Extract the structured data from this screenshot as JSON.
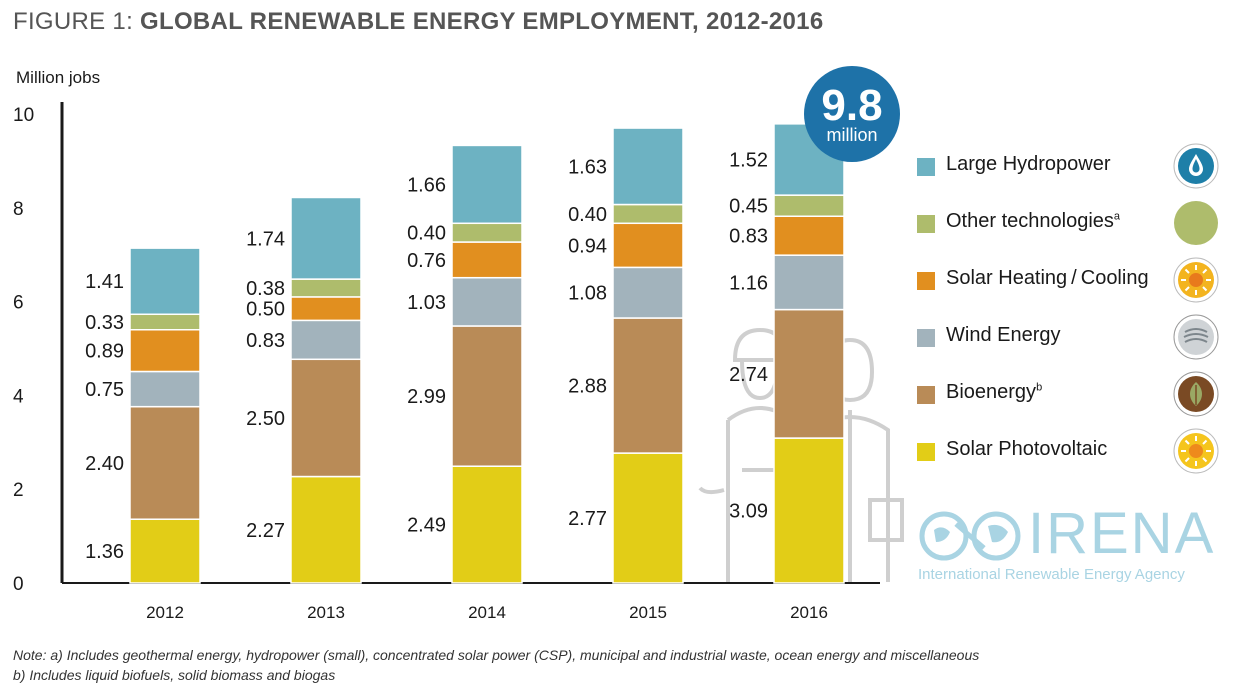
{
  "figure": {
    "prefix": "FIGURE 1: ",
    "title": "GLOBAL RENEWABLE ENERGY EMPLOYMENT, 2012-2016"
  },
  "chart_data": {
    "type": "bar",
    "stacked": true,
    "title": "GLOBAL RENEWABLE ENERGY EMPLOYMENT, 2012-2016",
    "ylabel": "Million jobs",
    "xlabel": "",
    "ylim": [
      0,
      10
    ],
    "yticks": [
      0,
      2,
      4,
      6,
      8,
      10
    ],
    "categories": [
      "2012",
      "2013",
      "2014",
      "2015",
      "2016"
    ],
    "series": [
      {
        "name": "Solar Photovoltaic",
        "color": "#e2cd17",
        "values": [
          1.36,
          2.27,
          2.49,
          2.77,
          3.09
        ],
        "labels": [
          "1.36",
          "2.27",
          "2.49",
          "2.77",
          "3.09"
        ]
      },
      {
        "name": "Bioenergy",
        "color": "#b98b57",
        "values": [
          2.4,
          2.5,
          2.99,
          2.88,
          2.74
        ],
        "labels": [
          "2.40",
          "2.50",
          "2.99",
          "2.88",
          "2.74"
        ]
      },
      {
        "name": "Wind Energy",
        "color": "#a2b3bc",
        "values": [
          0.75,
          0.83,
          1.03,
          1.08,
          1.16
        ],
        "labels": [
          "0.75",
          "0.83",
          "1.03",
          "1.08",
          "1.16"
        ]
      },
      {
        "name": "Solar Heating / Cooling",
        "color": "#e18f1f",
        "values": [
          0.89,
          0.5,
          0.76,
          0.94,
          0.83
        ],
        "labels": [
          "0.89",
          "0.50",
          "0.76",
          "0.94",
          "0.83"
        ]
      },
      {
        "name": "Other technologies",
        "color": "#aebc6c",
        "values": [
          0.33,
          0.38,
          0.4,
          0.4,
          0.45
        ],
        "labels": [
          "0.33",
          "0.38",
          "0.40",
          "0.40",
          "0.45"
        ]
      },
      {
        "name": "Large Hydropower",
        "color": "#6db2c2",
        "values": [
          1.41,
          1.74,
          1.66,
          1.63,
          1.52
        ],
        "labels": [
          "1.41",
          "1.74",
          "1.66",
          "1.63",
          "1.52"
        ]
      }
    ],
    "annotation": {
      "value": "9.8",
      "unit": "million",
      "color": "#1e72a8"
    }
  },
  "legend": [
    {
      "label": "Large Hydropower",
      "sup": "",
      "color": "#6db2c2",
      "icon": "water-drop-icon"
    },
    {
      "label": "Other technologies",
      "sup": "a",
      "color": "#aebc6c",
      "icon": "circle-icon"
    },
    {
      "label": "Solar Heating / Cooling",
      "sup": "",
      "color": "#e18f1f",
      "icon": "sun-icon"
    },
    {
      "label": "Wind Energy",
      "sup": "",
      "color": "#a2b3bc",
      "icon": "wind-icon"
    },
    {
      "label": "Bioenergy",
      "sup": "b",
      "color": "#b98b57",
      "icon": "leaf-icon"
    },
    {
      "label": "Solar Photovoltaic",
      "sup": "",
      "color": "#e2cd17",
      "icon": "sun-icon"
    }
  ],
  "logo": {
    "name": "IRENA",
    "subtitle": "International Renewable Energy Agency"
  },
  "notes": {
    "a": "Note: a) Includes geothermal energy, hydropower (small), concentrated solar power (CSP), municipal and industrial waste, ocean energy and miscellaneous",
    "b": "b) Includes liquid biofuels, solid biomass and biogas"
  }
}
